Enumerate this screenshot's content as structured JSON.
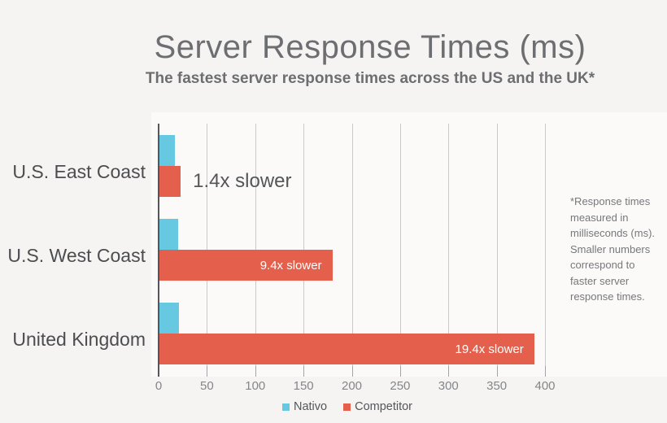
{
  "title": "Server Response Times (ms)",
  "subtitle": "The fastest server response times across the US and the UK*",
  "footnote": "*Response times measured in milliseconds (ms). Smaller numbers correspond to faster server response times.",
  "colors": {
    "background": "#f5f4f2",
    "heading": "#6d6e71",
    "category_label": "#4c4d51",
    "axis": "#55565a",
    "gridline": "#cacaca",
    "tick_label": "#85868a",
    "footnote_text": "#77787b",
    "annotation_text": "#55565a",
    "nativo_blue": "#67c8e2",
    "competitor_orange": "#e5604c"
  },
  "legend": {
    "items": [
      {
        "label": "Nativo",
        "color": "#67c8e2"
      },
      {
        "label": "Competitor",
        "color": "#e5604c"
      }
    ]
  },
  "chart_data": {
    "type": "bar",
    "orientation": "horizontal",
    "title": "Server Response Times (ms)",
    "subtitle": "The fastest server response times across the US and the UK*",
    "categories": [
      "U.S. East Coast",
      "U.S. West Coast",
      "United Kingdom"
    ],
    "series": [
      {
        "name": "Nativo",
        "color": "#67c8e2",
        "values": [
          16,
          19,
          20
        ]
      },
      {
        "name": "Competitor",
        "color": "#e5604c",
        "values": [
          22,
          179,
          388
        ]
      }
    ],
    "annotations": [
      {
        "category": "U.S. East Coast",
        "text": "1.4x slower",
        "placement": "outside"
      },
      {
        "category": "U.S. West Coast",
        "text": "9.4x slower",
        "placement": "inside"
      },
      {
        "category": "United Kingdom",
        "text": "19.4x slower",
        "placement": "inside"
      }
    ],
    "x_ticks": [
      0,
      50,
      100,
      150,
      200,
      250,
      300,
      350,
      400
    ],
    "xlim": [
      0,
      400
    ],
    "xlabel": "",
    "ylabel": "",
    "grid": true,
    "legend_position": "bottom"
  }
}
